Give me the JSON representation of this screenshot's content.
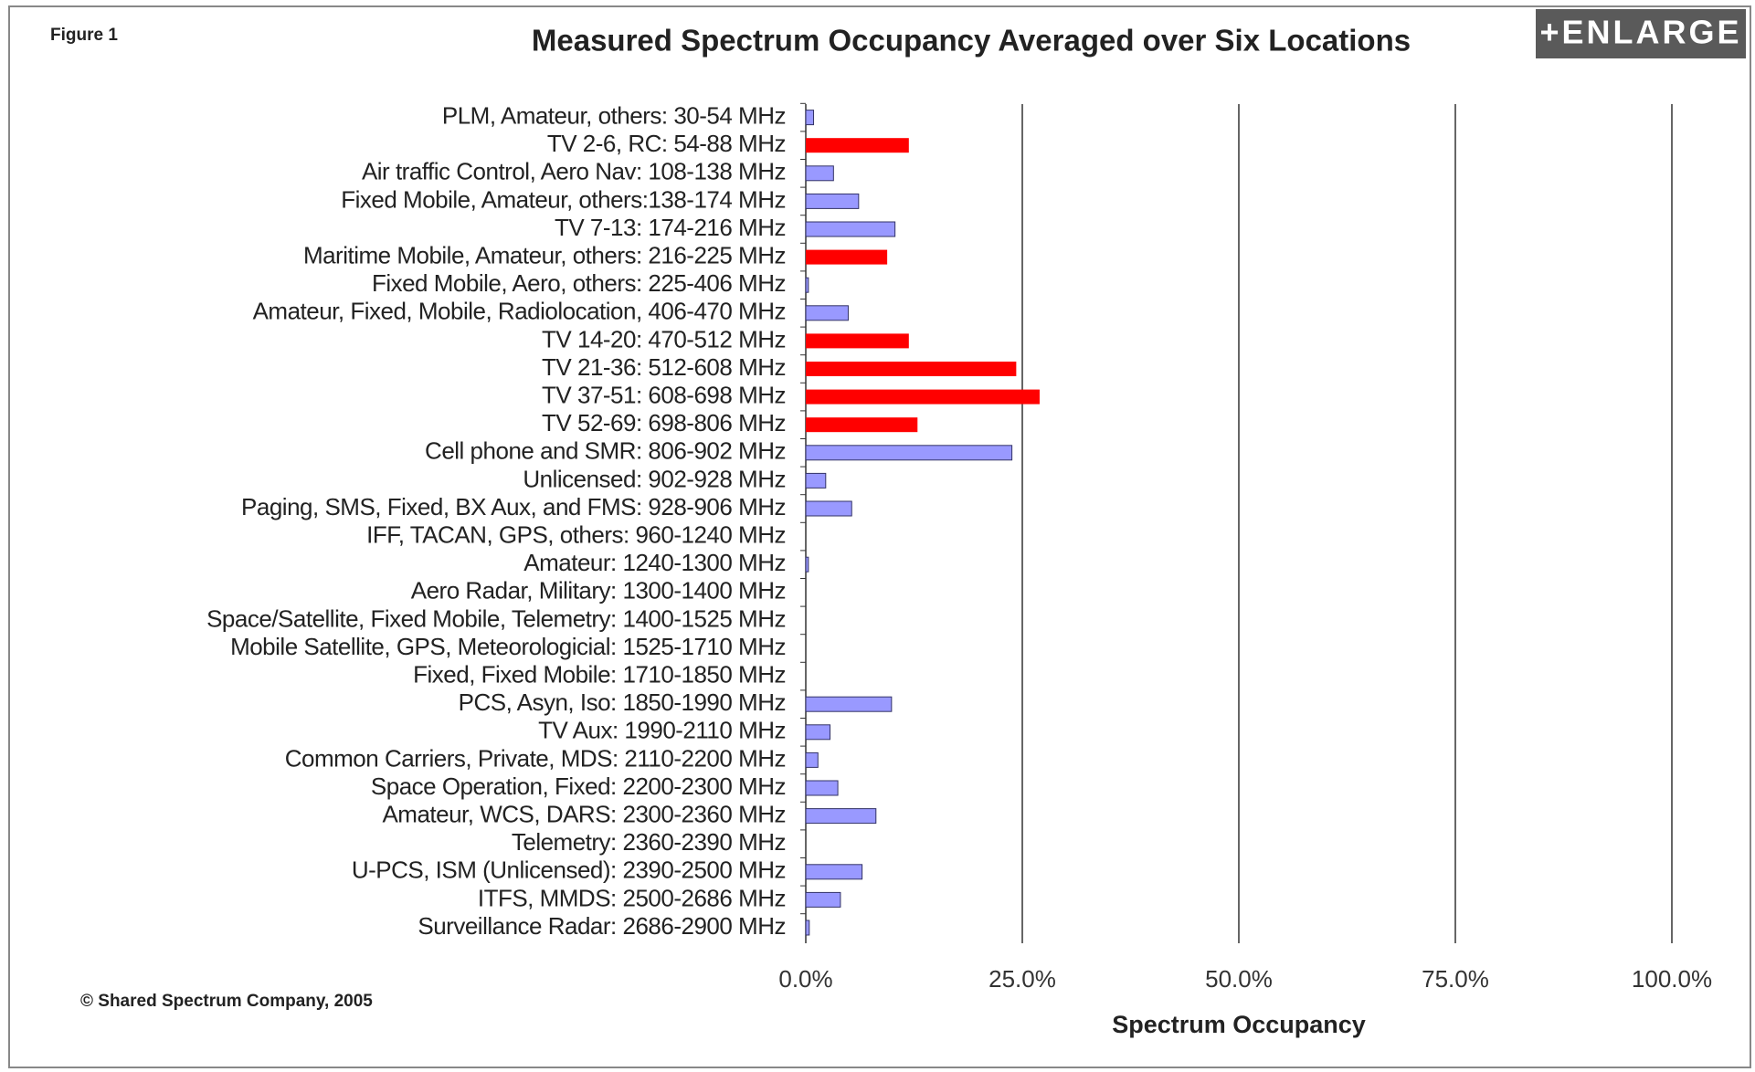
{
  "chart_data": {
    "type": "bar",
    "orientation": "horizontal",
    "figure_label": "Figure 1",
    "title": "Measured Spectrum Occupancy Averaged over Six Locations",
    "button": "+ENLARGE",
    "credit": "© Shared Spectrum Company, 2005",
    "x_label": "Spectrum Occupancy",
    "categories": [
      "PLM, Amateur, others: 30-54 MHz",
      "TV 2-6, RC: 54-88 MHz",
      "Air traffic Control, Aero Nav: 108-138 MHz",
      "Fixed Mobile, Amateur, others:138-174 MHz",
      "TV 7-13: 174-216 MHz",
      "Maritime Mobile, Amateur, others: 216-225 MHz",
      "Fixed Mobile, Aero, others: 225-406 MHz",
      "Amateur, Fixed, Mobile, Radiolocation, 406-470 MHz",
      "TV 14-20: 470-512 MHz",
      "TV 21-36: 512-608 MHz",
      "TV 37-51: 608-698 MHz",
      "TV 52-69: 698-806 MHz",
      "Cell phone and SMR: 806-902 MHz",
      "Unlicensed: 902-928 MHz",
      "Paging, SMS, Fixed, BX Aux, and FMS: 928-906 MHz",
      "IFF, TACAN, GPS, others: 960-1240 MHz",
      "Amateur: 1240-1300 MHz",
      "Aero Radar, Military: 1300-1400 MHz",
      "Space/Satellite, Fixed Mobile, Telemetry: 1400-1525 MHz",
      "Mobile Satellite, GPS, Meteorologicial: 1525-1710 MHz",
      "Fixed, Fixed Mobile: 1710-1850 MHz",
      "PCS, Asyn, Iso: 1850-1990 MHz",
      "TV Aux: 1990-2110 MHz",
      "Common Carriers, Private, MDS: 2110-2200 MHz",
      "Space Operation, Fixed: 2200-2300 MHz",
      "Amateur, WCS, DARS: 2300-2360 MHz",
      "Telemetry: 2360-2390 MHz",
      "U-PCS, ISM (Unlicensed): 2390-2500 MHz",
      "ITFS, MMDS: 2500-2686 MHz",
      "Surveillance Radar: 2686-2900 MHz"
    ],
    "values": [
      0.9,
      11.9,
      3.2,
      6.1,
      10.3,
      9.4,
      0.3,
      4.9,
      11.9,
      24.3,
      27.0,
      12.9,
      23.8,
      2.3,
      5.3,
      0.0,
      0.3,
      0.0,
      0.0,
      0.0,
      0.0,
      9.9,
      2.8,
      1.4,
      3.7,
      8.1,
      0.0,
      6.5,
      4.0,
      0.4
    ],
    "colors": [
      "#9999ff",
      "#ff0000",
      "#9999ff",
      "#9999ff",
      "#9999ff",
      "#ff0000",
      "#9999ff",
      "#9999ff",
      "#ff0000",
      "#ff0000",
      "#ff0000",
      "#ff0000",
      "#9999ff",
      "#9999ff",
      "#9999ff",
      "#9999ff",
      "#9999ff",
      "#9999ff",
      "#9999ff",
      "#9999ff",
      "#9999ff",
      "#9999ff",
      "#9999ff",
      "#9999ff",
      "#9999ff",
      "#9999ff",
      "#9999ff",
      "#9999ff",
      "#9999ff",
      "#9999ff"
    ],
    "xlim": [
      0,
      100
    ],
    "xticks": [
      {
        "value": 0,
        "label": "0.0%"
      },
      {
        "value": 25,
        "label": "25.0%"
      },
      {
        "value": 50,
        "label": "50.0%"
      },
      {
        "value": 75,
        "label": "75.0%"
      },
      {
        "value": 100,
        "label": "100.0%"
      }
    ],
    "grid": true
  }
}
